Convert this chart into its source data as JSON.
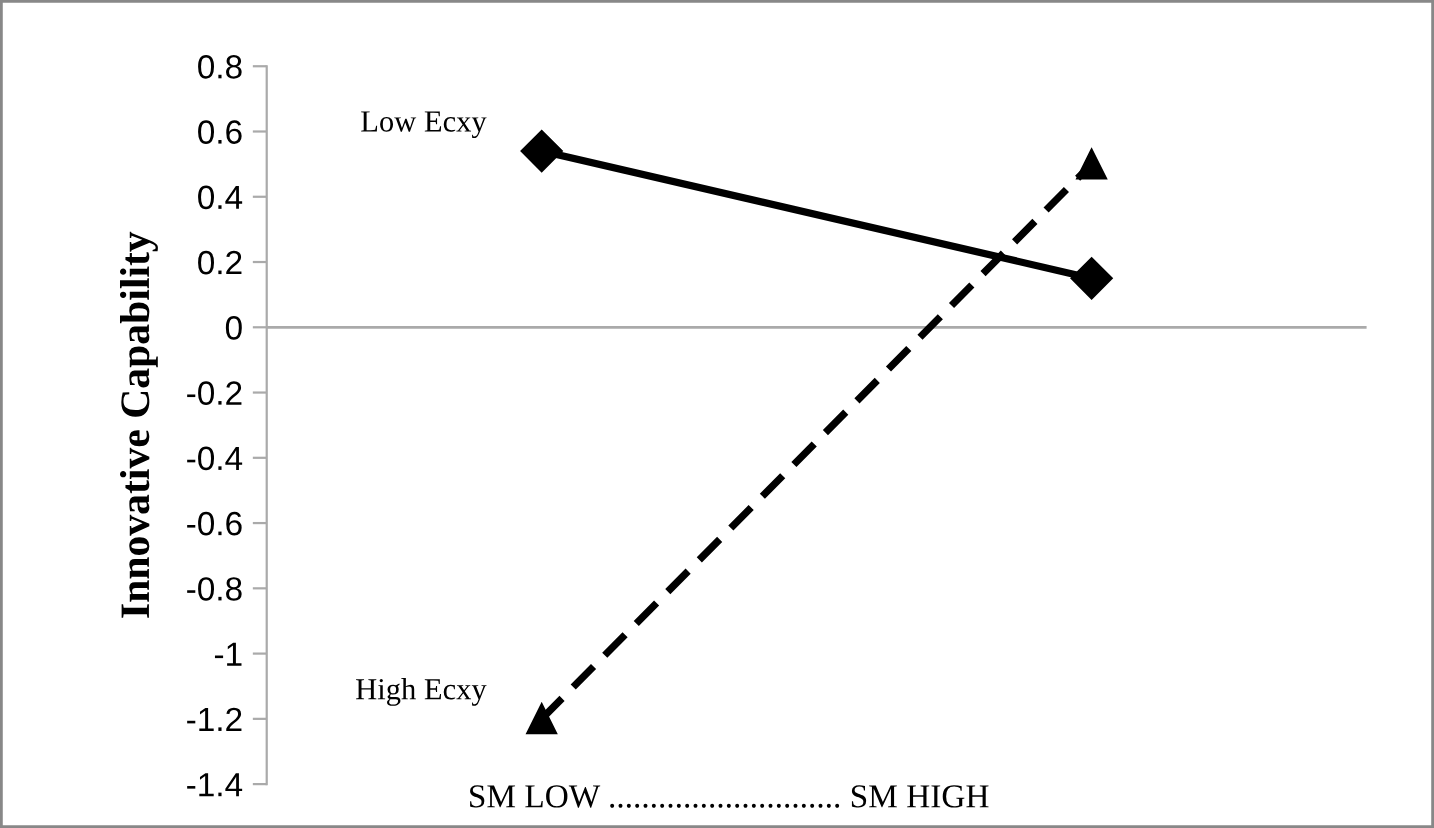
{
  "chart_data": {
    "type": "line",
    "xlabel": "SM LOW ............................ SM HIGH",
    "ylabel": "Innovative Capability",
    "categories": [
      null,
      null
    ],
    "series": [
      {
        "name": "Low Ecxy",
        "color": "#000000",
        "values": [
          0.54,
          0.15
        ],
        "marker": "diamond",
        "line_style": "solid"
      },
      {
        "name": "High Ecxy",
        "color": "#000000",
        "values": [
          -1.2,
          0.5
        ],
        "marker": "triangle",
        "line_style": "dashed"
      }
    ],
    "ylim": [
      -1.4,
      0.8
    ],
    "yticks": [
      -1.4,
      -1.2,
      -1,
      -0.8,
      -0.6,
      -0.4,
      -0.2,
      0,
      0.2,
      0.4,
      0.6,
      0.8
    ],
    "ref_lines": [
      {
        "axis": "y",
        "value": 0,
        "label": null,
        "color": "#aaaaaa"
      }
    ],
    "grid": false,
    "legend": false
  }
}
